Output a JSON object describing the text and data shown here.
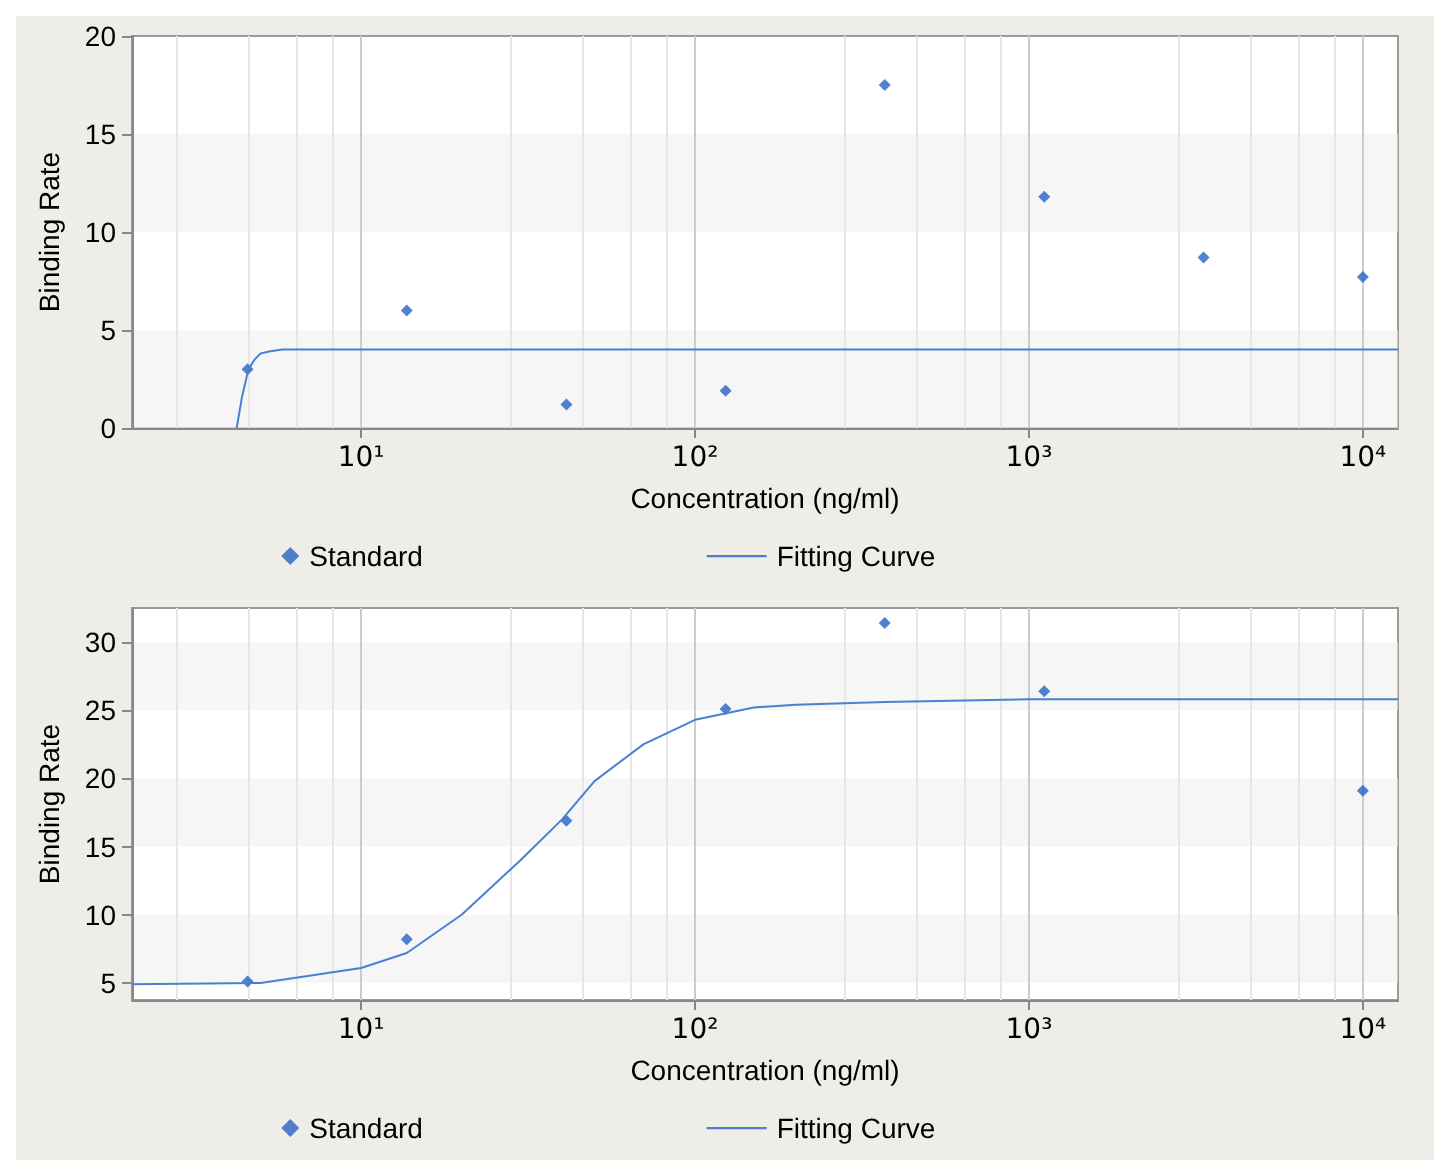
{
  "chart_data": [
    {
      "type": "scatter",
      "xlabel": "Concentration (ng/ml)",
      "ylabel": "Binding Rate",
      "log": "x",
      "xlim": [
        2.06,
        12740
      ],
      "xticks": [
        {
          "value": 10,
          "label": "10¹"
        },
        {
          "value": 100,
          "label": "10²"
        },
        {
          "value": 1000,
          "label": "10³"
        },
        {
          "value": 10000,
          "label": "10⁴"
        }
      ],
      "ylim": [
        0,
        20
      ],
      "yticks": [
        0,
        5,
        10,
        15,
        20
      ],
      "grid": "x",
      "legend": "bottom",
      "series": [
        {
          "name": "Standard",
          "marker": "diamond",
          "color": "#2563c4",
          "x": [
            4.57,
            13.7,
            41.2,
            123.5,
            370,
            1111,
            3333,
            10000
          ],
          "values": [
            3.0,
            6.0,
            1.2,
            1.9,
            17.5,
            11.8,
            8.7,
            7.7
          ]
        },
        {
          "name": "Fitting Curve",
          "type": "line",
          "marker": "none",
          "line_style": "solid",
          "color": "#4a7fd4",
          "x": [
            4.24,
            4.4,
            4.6,
            4.8,
            5.0,
            5.3,
            5.8,
            7,
            10,
            100,
            1000,
            12740
          ],
          "values": [
            0,
            1.6,
            3.0,
            3.5,
            3.8,
            3.9,
            4.0,
            4.0,
            4.0,
            4.0,
            4.0,
            4.0
          ]
        }
      ]
    },
    {
      "type": "scatter",
      "xlabel": "Concentration (ng/ml)",
      "ylabel": "Binding Rate",
      "log": "x",
      "xlim": [
        2.06,
        12740
      ],
      "xticks": [
        {
          "value": 10,
          "label": "10¹"
        },
        {
          "value": 100,
          "label": "10²"
        },
        {
          "value": 1000,
          "label": "10³"
        },
        {
          "value": 10000,
          "label": "10⁴"
        }
      ],
      "ylim": [
        3.75,
        32.5
      ],
      "yticks": [
        5,
        10,
        15,
        20,
        25,
        30
      ],
      "grid": "x",
      "legend": "bottom",
      "series": [
        {
          "name": "Standard",
          "marker": "diamond",
          "color": "#2563c4",
          "x": [
            4.57,
            13.7,
            41.2,
            123.5,
            370,
            1111,
            10000
          ],
          "values": [
            5.1,
            8.2,
            16.9,
            25.1,
            31.4,
            26.4,
            19.1
          ]
        },
        {
          "name": "Fitting Curve",
          "type": "line",
          "marker": "none",
          "line_style": "solid",
          "color": "#4a7fd4",
          "x": [
            2.06,
            5,
            10,
            13.7,
            20,
            30,
            40,
            50,
            70,
            100,
            150,
            200,
            370,
            1000,
            12740
          ],
          "values": [
            4.9,
            5.0,
            6.1,
            7.2,
            10,
            14,
            17,
            19.8,
            22.5,
            24.3,
            25.2,
            25.4,
            25.6,
            25.8,
            25.8
          ]
        }
      ]
    }
  ]
}
